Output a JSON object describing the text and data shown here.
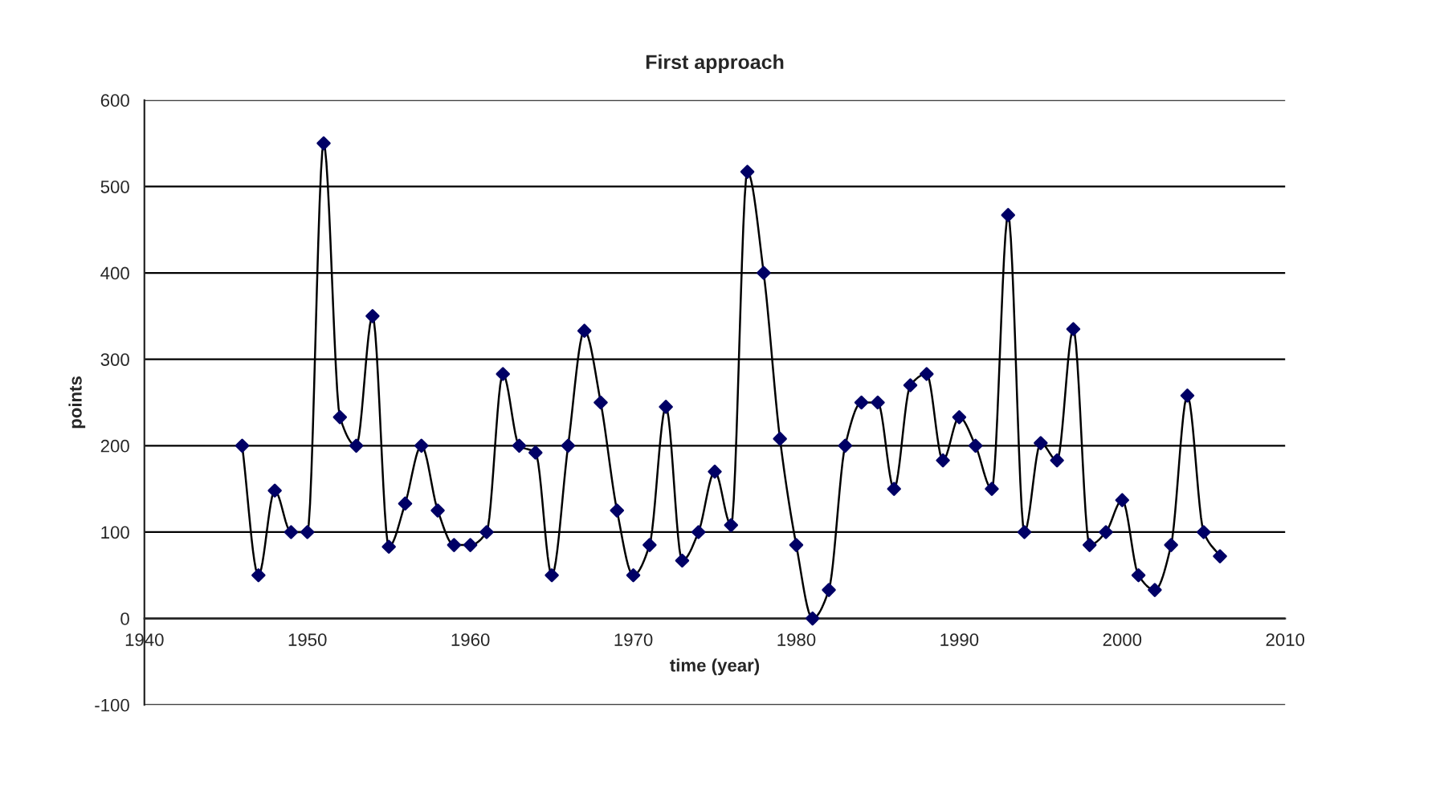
{
  "chart_data": {
    "type": "line",
    "title": "First approach",
    "xlabel": "time (year)",
    "ylabel": "points",
    "x": [
      1946,
      1947,
      1948,
      1949,
      1950,
      1951,
      1952,
      1953,
      1954,
      1955,
      1956,
      1957,
      1958,
      1959,
      1960,
      1961,
      1962,
      1963,
      1964,
      1965,
      1966,
      1967,
      1968,
      1969,
      1970,
      1971,
      1972,
      1973,
      1974,
      1975,
      1976,
      1977,
      1978,
      1979,
      1980,
      1981,
      1982,
      1983,
      1984,
      1985,
      1986,
      1987,
      1988,
      1989,
      1990,
      1991,
      1992,
      1993,
      1994,
      1995,
      1996,
      1997,
      1998,
      1999,
      2000,
      2001,
      2002,
      2003,
      2004,
      2005,
      2006
    ],
    "series": [
      {
        "color": "#000066",
        "values": [
          200,
          50,
          148,
          100,
          100,
          550,
          233,
          200,
          350,
          83,
          133,
          200,
          125,
          85,
          85,
          100,
          283,
          200,
          192,
          50,
          200,
          333,
          250,
          125,
          50,
          85,
          245,
          67,
          100,
          170,
          108,
          517,
          400,
          208,
          85,
          0,
          33,
          200,
          250,
          250,
          150,
          270,
          283,
          183,
          233,
          200,
          150,
          467,
          100,
          203,
          183,
          335,
          85,
          100,
          137,
          50,
          33,
          85,
          258,
          100,
          72
        ]
      }
    ],
    "xlim": [
      1940,
      2010
    ],
    "xticks": [
      1940,
      1950,
      1960,
      1970,
      1980,
      1990,
      2000,
      2010
    ],
    "ylim": [
      -100,
      600
    ],
    "yticks": [
      -100,
      0,
      100,
      200,
      300,
      400,
      500,
      600
    ],
    "grid": "y",
    "marker": "diamond",
    "line_style": "solid",
    "legend": false
  }
}
